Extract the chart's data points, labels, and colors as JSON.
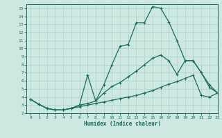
{
  "xlabel": "Humidex (Indice chaleur)",
  "xlim": [
    -0.5,
    23
  ],
  "ylim": [
    2,
    15.5
  ],
  "xticks": [
    0,
    1,
    2,
    3,
    4,
    5,
    6,
    7,
    8,
    9,
    10,
    11,
    12,
    13,
    14,
    15,
    16,
    17,
    18,
    19,
    20,
    21,
    22,
    23
  ],
  "yticks": [
    2,
    3,
    4,
    5,
    6,
    7,
    8,
    9,
    10,
    11,
    12,
    13,
    14,
    15
  ],
  "bg_color": "#cce8e0",
  "line_color": "#1a6b58",
  "grid_color": "#aad0c8",
  "line1_x": [
    0,
    1,
    2,
    3,
    4,
    5,
    6,
    7,
    8,
    9,
    10,
    11,
    12,
    13,
    14,
    15,
    16,
    17,
    18,
    19,
    20,
    21,
    22,
    23
  ],
  "line1_y": [
    3.7,
    3.1,
    2.6,
    2.4,
    2.4,
    2.6,
    3.0,
    3.2,
    3.5,
    5.5,
    8.0,
    10.3,
    10.5,
    13.2,
    13.2,
    15.2,
    15.0,
    13.3,
    11.0,
    8.5,
    8.5,
    7.0,
    5.2,
    4.5
  ],
  "line2_x": [
    0,
    1,
    2,
    3,
    4,
    5,
    6,
    7,
    8,
    9,
    10,
    11,
    12,
    13,
    14,
    15,
    16,
    17,
    18,
    19,
    20,
    21,
    22,
    23
  ],
  "line2_y": [
    3.7,
    3.1,
    2.6,
    2.4,
    2.4,
    2.6,
    3.0,
    6.7,
    3.5,
    4.5,
    5.3,
    5.8,
    6.5,
    7.2,
    8.0,
    8.8,
    9.2,
    8.5,
    6.8,
    8.5,
    8.5,
    7.0,
    5.5,
    4.5
  ],
  "line3_x": [
    0,
    1,
    2,
    3,
    4,
    5,
    6,
    7,
    8,
    9,
    10,
    11,
    12,
    13,
    14,
    15,
    16,
    17,
    18,
    19,
    20,
    21,
    22,
    23
  ],
  "line3_y": [
    3.7,
    3.1,
    2.6,
    2.4,
    2.4,
    2.6,
    2.8,
    3.0,
    3.2,
    3.4,
    3.6,
    3.8,
    4.0,
    4.2,
    4.5,
    4.8,
    5.2,
    5.6,
    5.9,
    6.3,
    6.7,
    4.2,
    4.0,
    4.5
  ]
}
